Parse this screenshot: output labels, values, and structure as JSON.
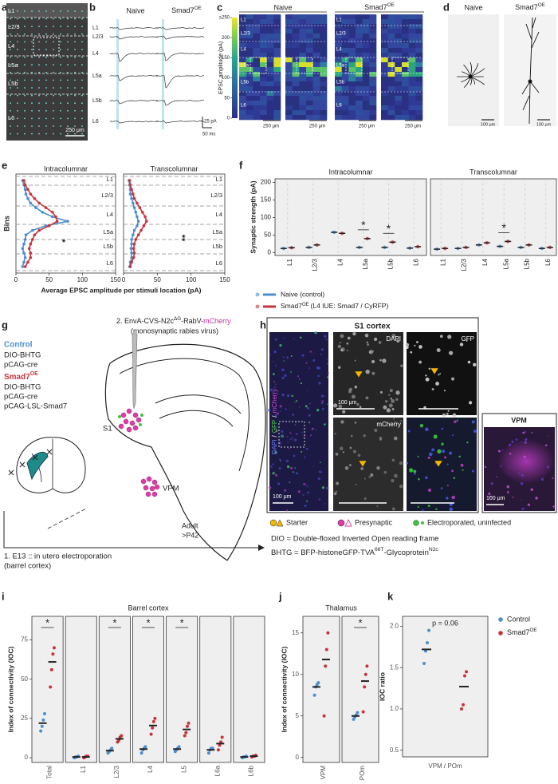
{
  "panel_letters": [
    "a",
    "b",
    "c",
    "d",
    "e",
    "f",
    "g",
    "h",
    "i",
    "j",
    "k"
  ],
  "colors": {
    "control": "#4a8fcf",
    "smad7": "#c9343b"
  },
  "a": {
    "layers": [
      "L1",
      "L2/3",
      "L4",
      "L5a",
      "L5b",
      "L6"
    ],
    "scale": "250 μm"
  },
  "b": {
    "naive": "Naive",
    "smad7": "Smad7",
    "oe": "OE",
    "layers": [
      "L1",
      "L2/3",
      "L4",
      "L5a",
      "L5b",
      "L6"
    ],
    "scale_amplitude": "25 pA",
    "scale_time": "50 ms"
  },
  "c": {
    "naive": "Naive",
    "smad7": "Smad7",
    "oe": "OE",
    "colorbar_label": "EPSC amplitude (pA)",
    "colorbar_lim": [
      0,
      250
    ],
    "colorbar_ticks": [
      {
        "value": 250,
        "label": "≥250"
      },
      200,
      150,
      100,
      50,
      0
    ],
    "layers": [
      "L1",
      "L2/3",
      "L4",
      "L5a",
      "L5b",
      "L6"
    ],
    "scale": "250 μm"
  },
  "d": {
    "naive": "Naive",
    "smad7": "Smad7",
    "oe": "OE",
    "scale": "100 μm"
  },
  "e": {
    "titles": [
      "Intracolumnar",
      "Transcolumnar"
    ],
    "layers": [
      "L1",
      "L2/3",
      "L4",
      "L5a",
      "L5b",
      "L6"
    ],
    "ylabel": "Bins",
    "xlabel": "Average EPSC amplitude per stimuli location (pA)",
    "xlim": [
      0,
      150
    ],
    "xticks": [
      0,
      50,
      100,
      150
    ],
    "control": [
      [
        10,
        12,
        14,
        15,
        18,
        22,
        30,
        40,
        55,
        78,
        45,
        25,
        15,
        14,
        12,
        10,
        12,
        14,
        12,
        10
      ],
      [
        8,
        9,
        10,
        10,
        12,
        14,
        16,
        18,
        20,
        22,
        20,
        16,
        14,
        12,
        12,
        11,
        12,
        12,
        10,
        9
      ]
    ],
    "smad7": [
      [
        12,
        14,
        18,
        22,
        28,
        35,
        45,
        55,
        60,
        62,
        50,
        35,
        28,
        25,
        22,
        20,
        22,
        22,
        18,
        14
      ],
      [
        9,
        10,
        12,
        14,
        16,
        20,
        24,
        28,
        32,
        34,
        30,
        26,
        22,
        18,
        16,
        15,
        16,
        15,
        12,
        10
      ]
    ],
    "significance": [
      "*",
      "**"
    ]
  },
  "f": {
    "titles": [
      "Intracolumnar",
      "Transcolumnar"
    ],
    "ylabel": "Synaptic strength (pA)",
    "categories": [
      "L1",
      "L2/3",
      "L4",
      "L5a",
      "L5b",
      "L6"
    ],
    "ylim": [
      -8,
      210
    ],
    "yticks": [
      0,
      50,
      100,
      150,
      200
    ],
    "control": [
      [
        12,
        15,
        58,
        15,
        15,
        13
      ],
      [
        10,
        12,
        22,
        18,
        15,
        12
      ]
    ],
    "smad7": [
      [
        14,
        22,
        55,
        40,
        30,
        17
      ],
      [
        12,
        15,
        28,
        32,
        22,
        15
      ]
    ],
    "significance": [
      [
        null,
        null,
        null,
        "*",
        "*",
        null
      ],
      [
        null,
        null,
        null,
        "*",
        null,
        null
      ]
    ],
    "legend": {
      "control": "Naive (control)",
      "smad7": "Smad7",
      "oe": "OE",
      "smad7_note": "(L4 IUE: Smad7 / CyRFP)"
    }
  },
  "g": {
    "virus": {
      "step": "2. EnvA-CVS-N2c",
      "sup": "ΔG",
      "mid": "-RabV-",
      "reporter": "mCherry",
      "note": "(monosynaptic rabies virus)"
    },
    "control": {
      "name": "Control",
      "constructs": [
        "DIO-BHTG",
        "pCAG-cre"
      ]
    },
    "smad7": {
      "name": "Smad7",
      "oe": "OE",
      "constructs": [
        "DIO-BHTG",
        "pCAG-cre",
        "pCAG-LSL-Smad7"
      ]
    },
    "region": "S1",
    "thalamus": "VPM",
    "age": [
      "Adult",
      ">P42"
    ],
    "electroporation": [
      "1. E13 :: in utero electroporation",
      "(barrel cortex)"
    ]
  },
  "h": {
    "title": "S1 cortex",
    "channels": [
      "DAPI",
      "GFP",
      "mCherry"
    ],
    "separator": "/",
    "scale": "100 μm",
    "vpm": "VPM",
    "legend": [
      "Starter",
      "Presynaptic",
      "Electroporated, uninfected"
    ],
    "dio": "DIO = Double-floxed Inverted Open reading frame",
    "bhtg": [
      "BHTG = BFP-histoneGFP-TVA",
      "66T",
      "-Glycoprotein",
      "N2c"
    ]
  },
  "i": {
    "title": "Barrel cortex",
    "ylabel": "Index of connectivity (IOC)",
    "categories": [
      "Total",
      "L1",
      "L2/3",
      "L4",
      "L5",
      "L6a",
      "L6b"
    ],
    "ylim": [
      -3,
      90
    ],
    "yticks": [
      0,
      25,
      50,
      75
    ],
    "control_points": [
      [
        17,
        20,
        24,
        28
      ],
      [
        0,
        0.5,
        0.5,
        1
      ],
      [
        3,
        4,
        5,
        6
      ],
      [
        3,
        5,
        6,
        7
      ],
      [
        4,
        5,
        6,
        7
      ],
      [
        3,
        5,
        6,
        6
      ],
      [
        0,
        0.5,
        0.5,
        1
      ]
    ],
    "smad7_points": [
      [
        45,
        56,
        66,
        70
      ],
      [
        0,
        0.5,
        1,
        1
      ],
      [
        10,
        11,
        13,
        14
      ],
      [
        15,
        19,
        23,
        25
      ],
      [
        14,
        16,
        20,
        22
      ],
      [
        5,
        8,
        10,
        13
      ],
      [
        0.5,
        1,
        1,
        1.5
      ]
    ],
    "control_mean": [
      22,
      0.5,
      4.5,
      5.5,
      5.5,
      5,
      0.5
    ],
    "smad7_mean": [
      61,
      0.5,
      12,
      20.5,
      18,
      9,
      1
    ],
    "significance": [
      "*",
      null,
      "*",
      "*",
      "*",
      null,
      null
    ]
  },
  "j": {
    "title": "Thalamus",
    "ylabel": "Index of connectivity (IOC)",
    "categories": [
      "VPM",
      "POm"
    ],
    "ylim": [
      -0.6,
      17
    ],
    "yticks": [
      0,
      5,
      10,
      15
    ],
    "control_points": [
      [
        7.5,
        8.5,
        8.8,
        9
      ],
      [
        4.6,
        4.9,
        5.1,
        5.4
      ]
    ],
    "smad7_points": [
      [
        5,
        11,
        13,
        15
      ],
      [
        5.5,
        8.5,
        10,
        11
      ]
    ],
    "control_mean": [
      8.5,
      5
    ],
    "smad7_mean": [
      11.8,
      9.2
    ],
    "significance": [
      null,
      "*"
    ]
  },
  "k": {
    "ylabel": "IOC ratio",
    "xlabel": "VPM / POm",
    "ylim": [
      0.42,
      2.12
    ],
    "yticks": [
      0.5,
      {
        "value": 1,
        "label": "1.0"
      },
      1.5,
      {
        "value": 2,
        "label": "2.0"
      }
    ],
    "annotation": "p = 0.06",
    "control_points": [
      1.55,
      1.7,
      1.8,
      1.95
    ],
    "smad7_points": [
      1.0,
      1.05,
      1.4,
      1.45
    ],
    "control_mean": 1.72,
    "smad7_mean": 1.27,
    "legend": {
      "control": "Control",
      "smad7": "Smad7",
      "oe": "OE"
    }
  }
}
